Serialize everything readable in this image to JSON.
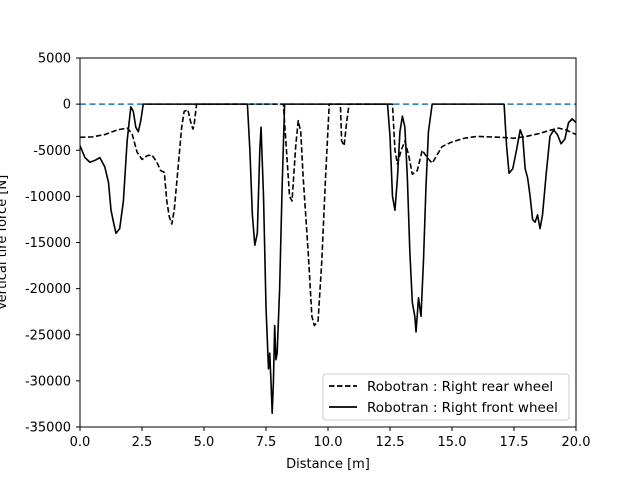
{
  "chart_data": {
    "type": "line",
    "title": "",
    "xlabel": "Distance [m]",
    "ylabel": "Vertical tire force [N]",
    "xlim": [
      0,
      20
    ],
    "ylim": [
      -35000,
      5000
    ],
    "xticks": [
      0,
      2.5,
      5,
      7.5,
      10,
      12.5,
      15,
      17.5,
      20
    ],
    "xtick_labels": [
      "0.0",
      "2.5",
      "5.0",
      "7.5",
      "10.0",
      "12.5",
      "15.0",
      "17.5",
      "20.0"
    ],
    "yticks": [
      5000,
      0,
      -5000,
      -10000,
      -15000,
      -20000,
      -25000,
      -30000,
      -35000
    ],
    "ytick_labels": [
      "5000",
      "0",
      "-5000",
      "-10000",
      "-15000",
      "-20000",
      "-25000",
      "-30000",
      "-35000"
    ],
    "grid": false,
    "legend_position": "lower-right",
    "reference_line": {
      "y": 0,
      "color": "#1f77b4",
      "style": "dashed"
    },
    "series": [
      {
        "name": "Robotran : Right rear  wheel",
        "style": "dashed",
        "color": "#000000",
        "points": [
          [
            0,
            -3600
          ],
          [
            0.5,
            -3550
          ],
          [
            1.0,
            -3300
          ],
          [
            1.5,
            -2800
          ],
          [
            1.9,
            -2600
          ],
          [
            2.1,
            -3200
          ],
          [
            2.3,
            -5200
          ],
          [
            2.5,
            -6000
          ],
          [
            2.7,
            -5600
          ],
          [
            2.9,
            -5500
          ],
          [
            3.1,
            -6300
          ],
          [
            3.25,
            -7200
          ],
          [
            3.4,
            -7400
          ],
          [
            3.5,
            -10500
          ],
          [
            3.6,
            -12200
          ],
          [
            3.7,
            -13000
          ],
          [
            3.8,
            -11500
          ],
          [
            3.95,
            -7000
          ],
          [
            4.1,
            -2500
          ],
          [
            4.2,
            -800
          ],
          [
            4.35,
            -600
          ],
          [
            4.45,
            -1800
          ],
          [
            4.55,
            -2700
          ],
          [
            4.6,
            -2300
          ],
          [
            4.7,
            0
          ],
          [
            8.2,
            0
          ],
          [
            8.3,
            -4000
          ],
          [
            8.45,
            -10000
          ],
          [
            8.55,
            -10500
          ],
          [
            8.7,
            -4500
          ],
          [
            8.8,
            -1800
          ],
          [
            8.9,
            -3000
          ],
          [
            9.0,
            -8000
          ],
          [
            9.2,
            -16000
          ],
          [
            9.35,
            -23000
          ],
          [
            9.45,
            -24000
          ],
          [
            9.6,
            -23500
          ],
          [
            9.75,
            -17000
          ],
          [
            9.9,
            -8000
          ],
          [
            10.05,
            0
          ],
          [
            10.5,
            0
          ],
          [
            10.55,
            -4000
          ],
          [
            10.65,
            -4500
          ],
          [
            10.75,
            -2000
          ],
          [
            10.85,
            0
          ],
          [
            12.6,
            0
          ],
          [
            12.7,
            -5000
          ],
          [
            12.8,
            -6500
          ],
          [
            12.95,
            -5000
          ],
          [
            13.1,
            -4000
          ],
          [
            13.25,
            -5500
          ],
          [
            13.4,
            -7600
          ],
          [
            13.6,
            -7200
          ],
          [
            13.8,
            -5000
          ],
          [
            14.0,
            -5800
          ],
          [
            14.2,
            -6400
          ],
          [
            14.4,
            -5500
          ],
          [
            14.6,
            -4600
          ],
          [
            15.0,
            -4100
          ],
          [
            15.5,
            -3700
          ],
          [
            16.0,
            -3500
          ],
          [
            16.5,
            -3550
          ],
          [
            17.0,
            -3600
          ],
          [
            17.5,
            -3700
          ],
          [
            18.0,
            -3500
          ],
          [
            18.5,
            -3200
          ],
          [
            19.0,
            -2800
          ],
          [
            19.3,
            -2600
          ],
          [
            19.6,
            -2800
          ],
          [
            20.0,
            -3300
          ]
        ]
      },
      {
        "name": "Robotran : Right front wheel",
        "style": "solid",
        "color": "#000000",
        "points": [
          [
            0,
            -4500
          ],
          [
            0.2,
            -5800
          ],
          [
            0.4,
            -6300
          ],
          [
            0.6,
            -6100
          ],
          [
            0.8,
            -5800
          ],
          [
            1.0,
            -6800
          ],
          [
            1.15,
            -8500
          ],
          [
            1.25,
            -11500
          ],
          [
            1.35,
            -12800
          ],
          [
            1.45,
            -14000
          ],
          [
            1.6,
            -13500
          ],
          [
            1.75,
            -10500
          ],
          [
            1.9,
            -4000
          ],
          [
            2.05,
            -300
          ],
          [
            2.15,
            -800
          ],
          [
            2.25,
            -2500
          ],
          [
            2.35,
            -3000
          ],
          [
            2.45,
            -1800
          ],
          [
            2.55,
            0
          ],
          [
            6.75,
            0
          ],
          [
            6.85,
            -5000
          ],
          [
            6.95,
            -12000
          ],
          [
            7.05,
            -15300
          ],
          [
            7.15,
            -14000
          ],
          [
            7.25,
            -5000
          ],
          [
            7.3,
            -2500
          ],
          [
            7.4,
            -10000
          ],
          [
            7.5,
            -22000
          ],
          [
            7.6,
            -28700
          ],
          [
            7.65,
            -27000
          ],
          [
            7.7,
            -30000
          ],
          [
            7.75,
            -33500
          ],
          [
            7.8,
            -30000
          ],
          [
            7.85,
            -24000
          ],
          [
            7.9,
            -27700
          ],
          [
            7.95,
            -27000
          ],
          [
            8.05,
            -20000
          ],
          [
            8.15,
            -9000
          ],
          [
            8.25,
            0
          ],
          [
            12.4,
            0
          ],
          [
            12.5,
            -3500
          ],
          [
            12.6,
            -10000
          ],
          [
            12.7,
            -11500
          ],
          [
            12.8,
            -8000
          ],
          [
            12.9,
            -3000
          ],
          [
            13.0,
            -1300
          ],
          [
            13.1,
            -2500
          ],
          [
            13.2,
            -8000
          ],
          [
            13.3,
            -16000
          ],
          [
            13.4,
            -21500
          ],
          [
            13.5,
            -23000
          ],
          [
            13.55,
            -24700
          ],
          [
            13.65,
            -21000
          ],
          [
            13.75,
            -23000
          ],
          [
            13.85,
            -17000
          ],
          [
            13.95,
            -9000
          ],
          [
            14.05,
            -3000
          ],
          [
            14.2,
            0
          ],
          [
            17.1,
            0
          ],
          [
            17.2,
            -4500
          ],
          [
            17.3,
            -7500
          ],
          [
            17.45,
            -7000
          ],
          [
            17.6,
            -5000
          ],
          [
            17.75,
            -2800
          ],
          [
            17.85,
            -3500
          ],
          [
            17.95,
            -7000
          ],
          [
            18.05,
            -8000
          ],
          [
            18.15,
            -10000
          ],
          [
            18.25,
            -12500
          ],
          [
            18.35,
            -12800
          ],
          [
            18.45,
            -12000
          ],
          [
            18.55,
            -13500
          ],
          [
            18.65,
            -12000
          ],
          [
            18.8,
            -7500
          ],
          [
            18.95,
            -3500
          ],
          [
            19.1,
            -2800
          ],
          [
            19.25,
            -3300
          ],
          [
            19.4,
            -4300
          ],
          [
            19.55,
            -3800
          ],
          [
            19.7,
            -2000
          ],
          [
            19.85,
            -1600
          ],
          [
            20.0,
            -2000
          ]
        ]
      }
    ]
  }
}
